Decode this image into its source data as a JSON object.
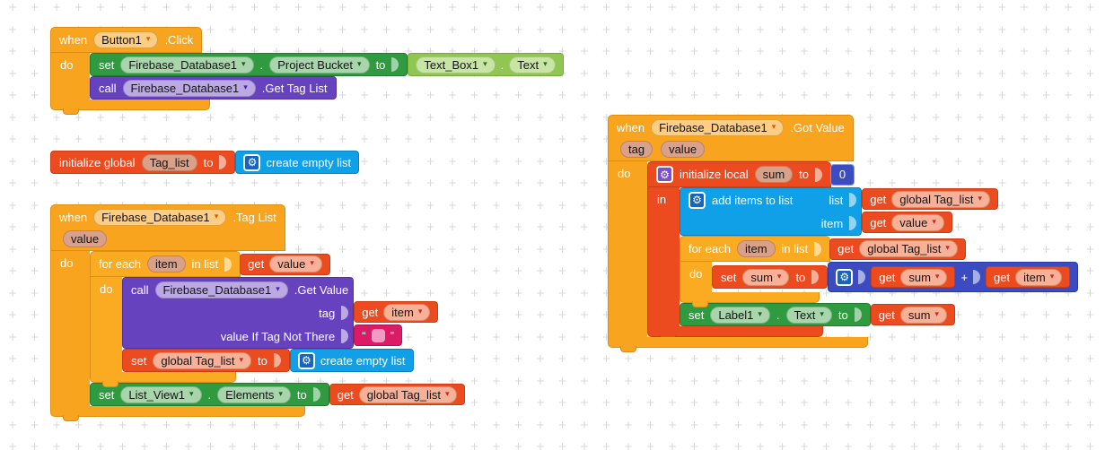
{
  "keywords": {
    "when": "when",
    "do": "do",
    "set": "set",
    "to": "to",
    "call": "call",
    "get": "get",
    "in": "in",
    "for_each": "for each",
    "in_list": "in list",
    "list": "list",
    "item": "item",
    "dot": ".",
    "plus": "+"
  },
  "icons": {
    "dropdown": "▾",
    "gear": "⚙",
    "quote_open": "“",
    "quote_close": "”"
  },
  "colors": {
    "event_orange": "#F9A41F",
    "control_gold": "#FBAB21",
    "variable_red": "#EC4B20",
    "setter_green": "#2F9A3F",
    "getter_light_green": "#92C653",
    "procedure_purple": "#6742BF",
    "list_blue": "#10A0E8",
    "math_blue": "#3B4CC0",
    "text_magenta": "#DC1A66",
    "canvas_cross": "#d8d8d8"
  },
  "blocks": {
    "when_button_click": {
      "component": "Button1",
      "event": ".Click",
      "set_bucket": {
        "component": "Firebase_Database1",
        "property": "Project Bucket"
      },
      "value_getter": {
        "component": "Text_Box1",
        "property": "Text"
      },
      "call_get_tag_list": {
        "component": "Firebase_Database1",
        "method": ".Get Tag List"
      }
    },
    "init_global": {
      "label": "initialize global",
      "name": "Tag_list",
      "value": "create empty list"
    },
    "when_tag_list": {
      "component": "Firebase_Database1",
      "event": ".Tag List",
      "param": "value",
      "foreach": {
        "var": "item",
        "list_var": "value"
      },
      "call_get_value": {
        "component": "Firebase_Database1",
        "method": ".Get Value",
        "arg1_label": "tag",
        "arg1_var": "item",
        "arg2_label": "value If Tag Not There"
      },
      "set_global": {
        "name": "global Tag_list",
        "value": "create empty list"
      },
      "set_elements": {
        "component": "List_View1",
        "property": "Elements",
        "value_var": "global Tag_list"
      }
    },
    "when_got_value": {
      "component": "Firebase_Database1",
      "event": ".Got Value",
      "param1": "tag",
      "param2": "value",
      "init_local": {
        "label": "initialize local",
        "name": "sum",
        "value": "0"
      },
      "add_items": {
        "label": "add items to list",
        "list_label": "list",
        "list_var": "global Tag_list",
        "item_label": "item",
        "item_var": "value"
      },
      "foreach": {
        "var": "item",
        "list_var": "global Tag_list"
      },
      "set_sum": {
        "name": "sum",
        "left_var": "sum",
        "right_var": "item"
      },
      "set_label_text": {
        "component": "Label1",
        "property": "Text",
        "value_var": "sum"
      }
    }
  }
}
